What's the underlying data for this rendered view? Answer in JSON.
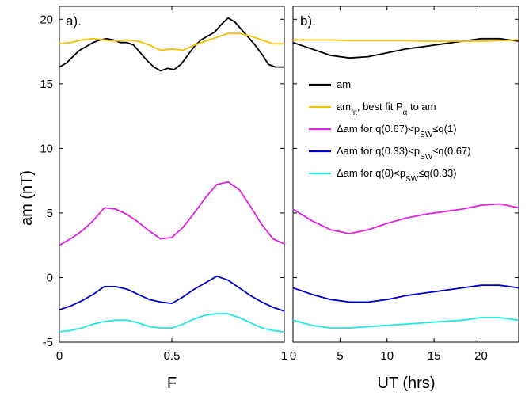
{
  "chart_data": [
    {
      "type": "line",
      "panel_label": "a).",
      "xlabel": "F",
      "ylabel": "am (nT)",
      "xlim": [
        0,
        1
      ],
      "ylim": [
        -5,
        21
      ],
      "xticks": [
        0,
        0.5,
        1
      ],
      "xtick_labels": [
        "0",
        "0.5",
        "1"
      ],
      "yticks": [
        -5,
        0,
        5,
        10,
        15,
        20
      ],
      "ytick_labels": [
        "-5",
        "0",
        "5",
        "10",
        "15",
        "20"
      ],
      "grid": false,
      "series": [
        {
          "key": "am",
          "color": "#000000",
          "x": [
            0,
            0.03,
            0.06,
            0.09,
            0.12,
            0.15,
            0.18,
            0.21,
            0.24,
            0.27,
            0.3,
            0.33,
            0.36,
            0.39,
            0.42,
            0.45,
            0.48,
            0.51,
            0.54,
            0.57,
            0.6,
            0.63,
            0.66,
            0.69,
            0.72,
            0.75,
            0.78,
            0.81,
            0.84,
            0.87,
            0.9,
            0.93,
            0.96,
            1.0
          ],
          "y": [
            16.3,
            16.6,
            17.1,
            17.6,
            17.9,
            18.2,
            18.4,
            18.5,
            18.4,
            18.2,
            18.2,
            18.0,
            17.4,
            16.8,
            16.3,
            16.0,
            16.2,
            16.1,
            16.5,
            17.2,
            17.9,
            18.4,
            18.7,
            19.0,
            19.6,
            20.1,
            19.8,
            19.2,
            18.6,
            18.0,
            17.3,
            16.5,
            16.3,
            16.3
          ]
        },
        {
          "key": "am_fit",
          "color": "#f2c200",
          "x": [
            0,
            0.05,
            0.1,
            0.15,
            0.2,
            0.25,
            0.3,
            0.35,
            0.4,
            0.45,
            0.5,
            0.55,
            0.6,
            0.65,
            0.7,
            0.75,
            0.8,
            0.85,
            0.9,
            0.95,
            1.0
          ],
          "y": [
            18.1,
            18.2,
            18.4,
            18.5,
            18.4,
            18.3,
            18.4,
            18.3,
            18.0,
            17.6,
            17.7,
            17.6,
            18.0,
            18.3,
            18.6,
            18.9,
            18.9,
            18.7,
            18.4,
            18.1,
            18.1
          ]
        },
        {
          "key": "dam_high",
          "color": "#e020e0",
          "x": [
            0,
            0.05,
            0.1,
            0.15,
            0.2,
            0.25,
            0.3,
            0.35,
            0.4,
            0.45,
            0.5,
            0.55,
            0.6,
            0.65,
            0.7,
            0.75,
            0.8,
            0.85,
            0.9,
            0.95,
            1.0
          ],
          "y": [
            2.5,
            3.0,
            3.6,
            4.4,
            5.4,
            5.3,
            4.9,
            4.3,
            3.6,
            3.0,
            3.1,
            3.9,
            5.0,
            6.2,
            7.2,
            7.4,
            6.8,
            5.5,
            4.1,
            3.0,
            2.6
          ]
        },
        {
          "key": "dam_mid",
          "color": "#0000cc",
          "x": [
            0,
            0.05,
            0.1,
            0.15,
            0.2,
            0.25,
            0.3,
            0.35,
            0.4,
            0.45,
            0.5,
            0.55,
            0.6,
            0.65,
            0.7,
            0.75,
            0.8,
            0.85,
            0.9,
            0.95,
            1.0
          ],
          "y": [
            -2.5,
            -2.2,
            -1.8,
            -1.3,
            -0.7,
            -0.7,
            -0.9,
            -1.3,
            -1.7,
            -1.9,
            -2.0,
            -1.5,
            -0.9,
            -0.4,
            0.1,
            -0.2,
            -0.8,
            -1.4,
            -1.9,
            -2.3,
            -2.6
          ]
        },
        {
          "key": "dam_low",
          "color": "#22e5e5",
          "x": [
            0,
            0.05,
            0.1,
            0.15,
            0.2,
            0.25,
            0.3,
            0.35,
            0.4,
            0.45,
            0.5,
            0.55,
            0.6,
            0.65,
            0.7,
            0.75,
            0.8,
            0.85,
            0.9,
            0.95,
            1.0
          ],
          "y": [
            -4.2,
            -4.1,
            -3.9,
            -3.6,
            -3.4,
            -3.3,
            -3.3,
            -3.5,
            -3.8,
            -3.9,
            -3.9,
            -3.6,
            -3.2,
            -2.9,
            -2.8,
            -2.8,
            -3.1,
            -3.5,
            -3.9,
            -4.1,
            -4.2
          ]
        }
      ]
    },
    {
      "type": "line",
      "panel_label": "b).",
      "xlabel": "UT (hrs)",
      "ylabel": "",
      "xlim": [
        0,
        24
      ],
      "ylim": [
        -5,
        21
      ],
      "xticks": [
        0,
        5,
        10,
        15,
        20
      ],
      "xtick_labels": [
        "0",
        "5",
        "10",
        "15",
        "20"
      ],
      "yticks": [
        -5,
        0,
        5,
        10,
        15,
        20
      ],
      "ytick_labels": [],
      "grid": false,
      "legend": {
        "placement": "center-right",
        "entries": [
          {
            "key": "am",
            "color": "#000000",
            "main": "am",
            "sub": "",
            "after": "",
            "sub2": "",
            "after2": ""
          },
          {
            "key": "am_fit",
            "color": "#f2c200",
            "main": "am",
            "sub": "fit",
            "after": ", best fit P",
            "sub2": "α",
            "after2": " to am"
          },
          {
            "key": "dam_high",
            "color": "#e020e0",
            "main": "Δam for q(0.67)<p",
            "sub": "SW",
            "after": "≤q(1)",
            "sub2": "",
            "after2": ""
          },
          {
            "key": "dam_mid",
            "color": "#0000cc",
            "main": "Δam for q(0.33)<p",
            "sub": "SW",
            "after": "≤q(0.67)",
            "sub2": "",
            "after2": ""
          },
          {
            "key": "dam_low",
            "color": "#22e5e5",
            "main": "Δam for q(0)<p",
            "sub": "SW",
            "after": "≤q(0.33)",
            "sub2": "",
            "after2": ""
          }
        ]
      },
      "series": [
        {
          "key": "am",
          "color": "#000000",
          "x": [
            0,
            2,
            4,
            6,
            8,
            10,
            12,
            14,
            16,
            18,
            20,
            22,
            24
          ],
          "y": [
            18.2,
            17.7,
            17.2,
            17.0,
            17.1,
            17.4,
            17.7,
            17.9,
            18.1,
            18.3,
            18.5,
            18.5,
            18.3
          ]
        },
        {
          "key": "am_fit",
          "color": "#f2c200",
          "x": [
            0,
            2,
            4,
            6,
            8,
            10,
            12,
            14,
            16,
            18,
            20,
            22,
            24
          ],
          "y": [
            18.4,
            18.4,
            18.4,
            18.35,
            18.35,
            18.35,
            18.35,
            18.3,
            18.3,
            18.3,
            18.3,
            18.35,
            18.4
          ]
        },
        {
          "key": "dam_high",
          "color": "#e020e0",
          "x": [
            0,
            2,
            4,
            6,
            8,
            10,
            12,
            14,
            16,
            18,
            20,
            22,
            24
          ],
          "y": [
            5.3,
            4.4,
            3.7,
            3.4,
            3.7,
            4.2,
            4.6,
            4.9,
            5.1,
            5.3,
            5.6,
            5.7,
            5.4
          ]
        },
        {
          "key": "dam_mid",
          "color": "#0000cc",
          "x": [
            0,
            2,
            4,
            6,
            8,
            10,
            12,
            14,
            16,
            18,
            20,
            22,
            24
          ],
          "y": [
            -0.8,
            -1.3,
            -1.7,
            -1.9,
            -1.9,
            -1.7,
            -1.4,
            -1.2,
            -1.0,
            -0.8,
            -0.6,
            -0.6,
            -0.8
          ]
        },
        {
          "key": "dam_low",
          "color": "#22e5e5",
          "x": [
            0,
            2,
            4,
            6,
            8,
            10,
            12,
            14,
            16,
            18,
            20,
            22,
            24
          ],
          "y": [
            -3.3,
            -3.7,
            -3.9,
            -3.9,
            -3.8,
            -3.7,
            -3.6,
            -3.5,
            -3.4,
            -3.3,
            -3.1,
            -3.1,
            -3.3
          ]
        }
      ]
    }
  ]
}
